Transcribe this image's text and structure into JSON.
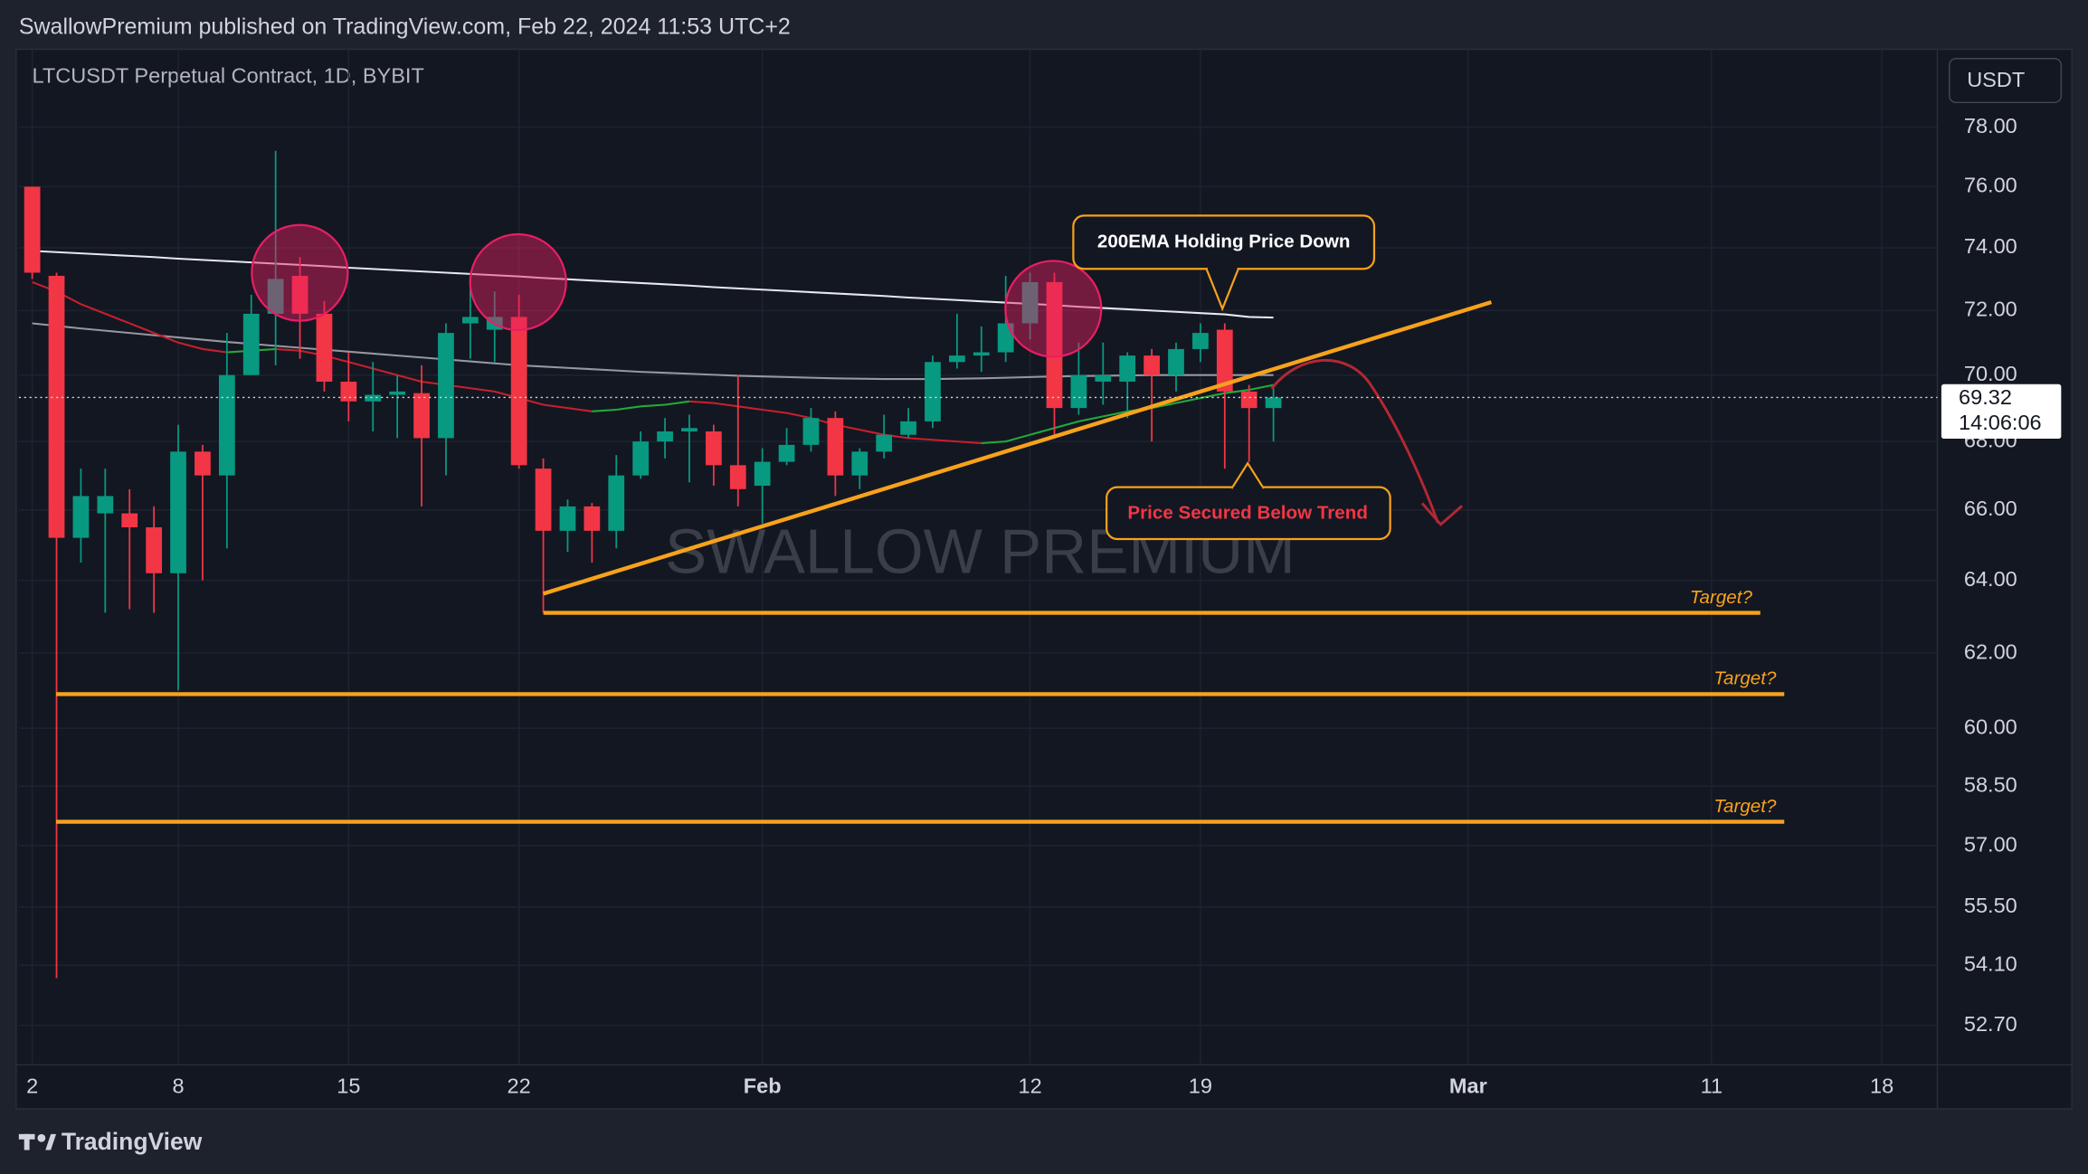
{
  "header": {
    "publisher": "SwallowPremium published on TradingView.com, Feb 22, 2024 11:53 UTC+2"
  },
  "footer": {
    "logo": "TradingView"
  },
  "chart_data": {
    "type": "candlestick",
    "title": "LTCUSDT Perpetual Contract, 1D, BYBIT",
    "currency": "USDT",
    "watermark": "SWALLOW PREMIUM",
    "log_scale": true,
    "grid": true,
    "up_color": "#089981",
    "down_color": "#f23645",
    "xlim": [
      -0.55,
      78.28
    ],
    "xticks": [
      {
        "value": 0,
        "label": "2"
      },
      {
        "value": 6,
        "label": "8"
      },
      {
        "value": 13,
        "label": "15"
      },
      {
        "value": 20,
        "label": "22"
      },
      {
        "value": 30,
        "label": "Feb"
      },
      {
        "value": 41,
        "label": "12"
      },
      {
        "value": 48,
        "label": "19"
      },
      {
        "value": 59,
        "label": "Mar"
      },
      {
        "value": 69,
        "label": "11"
      },
      {
        "value": 76,
        "label": "18"
      }
    ],
    "ylim": [
      51.8,
      80.7
    ],
    "yticks": [
      {
        "value": 78,
        "label": "78.00"
      },
      {
        "value": 76,
        "label": "76.00"
      },
      {
        "value": 74,
        "label": "74.00"
      },
      {
        "value": 72,
        "label": "72.00"
      },
      {
        "value": 70,
        "label": "70.00"
      },
      {
        "value": 68,
        "label": "68.00"
      },
      {
        "value": 66,
        "label": "66.00"
      },
      {
        "value": 64,
        "label": "64.00"
      },
      {
        "value": 62,
        "label": "62.00"
      },
      {
        "value": 60,
        "label": "60.00"
      },
      {
        "value": 58.5,
        "label": "58.50"
      },
      {
        "value": 57,
        "label": "57.00"
      },
      {
        "value": 55.5,
        "label": "55.50"
      },
      {
        "value": 54.1,
        "label": "54.10"
      },
      {
        "value": 52.7,
        "label": "52.70"
      }
    ],
    "x": [
      0,
      1,
      2,
      3,
      4,
      5,
      6,
      7,
      8,
      9,
      10,
      11,
      12,
      13,
      14,
      15,
      16,
      17,
      18,
      19,
      20,
      21,
      22,
      23,
      24,
      25,
      26,
      27,
      28,
      29,
      30,
      31,
      32,
      33,
      34,
      35,
      36,
      37,
      38,
      39,
      40,
      41,
      42,
      43,
      44,
      45,
      46,
      47,
      48,
      49,
      50,
      51
    ],
    "open": [
      76.0,
      73.1,
      65.2,
      65.9,
      65.9,
      65.5,
      64.2,
      67.7,
      67.0,
      70.0,
      71.9,
      73.1,
      71.9,
      69.8,
      69.2,
      69.4,
      69.45,
      68.1,
      71.6,
      71.4,
      71.8,
      67.2,
      65.4,
      66.1,
      65.4,
      67.0,
      68.0,
      68.3,
      68.3,
      67.3,
      66.7,
      67.4,
      67.9,
      68.7,
      67.0,
      67.7,
      68.2,
      68.6,
      70.4,
      70.6,
      70.7,
      71.6,
      72.9,
      69.0,
      69.8,
      69.8,
      70.6,
      70.0,
      70.8,
      71.4,
      69.5,
      69.0
    ],
    "high": [
      76.0,
      73.2,
      67.2,
      67.2,
      66.6,
      66.1,
      68.5,
      67.9,
      71.3,
      72.5,
      77.2,
      73.7,
      72.3,
      70.7,
      70.4,
      70.0,
      70.3,
      71.6,
      72.7,
      72.6,
      72.5,
      67.5,
      66.3,
      66.2,
      67.6,
      68.3,
      68.7,
      68.8,
      68.5,
      70.0,
      67.8,
      68.4,
      69.0,
      68.9,
      67.8,
      68.8,
      69.0,
      70.6,
      71.9,
      71.5,
      73.1,
      73.2,
      73.2,
      71.0,
      71.0,
      70.7,
      70.8,
      71.0,
      71.6,
      71.6,
      69.7,
      69.6
    ],
    "low": [
      73.0,
      53.8,
      64.5,
      63.1,
      63.2,
      63.1,
      61.0,
      64.0,
      64.9,
      70.0,
      70.3,
      70.5,
      69.5,
      68.6,
      68.3,
      68.1,
      66.1,
      67.0,
      70.5,
      70.4,
      67.2,
      63.1,
      64.8,
      64.5,
      64.9,
      66.9,
      67.5,
      66.8,
      66.7,
      66.1,
      65.6,
      67.3,
      67.7,
      66.4,
      66.6,
      67.5,
      68.1,
      68.4,
      70.2,
      70.1,
      70.4,
      71.1,
      68.2,
      68.8,
      69.1,
      68.7,
      68.0,
      69.5,
      70.4,
      67.2,
      67.4,
      68.0
    ],
    "close": [
      73.2,
      65.2,
      66.4,
      66.4,
      65.5,
      64.2,
      67.7,
      67.0,
      70.0,
      71.9,
      73.0,
      71.9,
      69.8,
      69.2,
      69.4,
      69.5,
      68.1,
      71.3,
      71.8,
      71.8,
      67.3,
      65.4,
      66.1,
      65.4,
      67.0,
      68.0,
      68.3,
      68.4,
      67.3,
      66.6,
      67.4,
      67.9,
      68.7,
      67.0,
      67.7,
      68.2,
      68.6,
      70.4,
      70.6,
      70.7,
      71.6,
      72.9,
      69.0,
      70.0,
      70.0,
      70.6,
      70.0,
      70.8,
      71.3,
      69.5,
      69.0,
      69.32
    ],
    "series": [
      {
        "color": "#e6e8ee",
        "values": [
          73.9,
          73.86,
          73.82,
          73.78,
          73.74,
          73.7,
          73.65,
          73.61,
          73.57,
          73.53,
          73.49,
          73.45,
          73.41,
          73.36,
          73.32,
          73.28,
          73.24,
          73.2,
          73.16,
          73.12,
          73.08,
          73.03,
          72.99,
          72.95,
          72.91,
          72.87,
          72.83,
          72.79,
          72.74,
          72.7,
          72.66,
          72.62,
          72.58,
          72.54,
          72.5,
          72.46,
          72.41,
          72.37,
          72.33,
          72.29,
          72.25,
          72.21,
          72.17,
          72.12,
          72.08,
          72.04,
          72.0,
          71.96,
          71.92,
          71.88,
          71.8,
          71.78
        ]
      },
      {
        "color": "#9598a1",
        "values": [
          71.6,
          71.52,
          71.44,
          71.37,
          71.3,
          71.23,
          71.16,
          71.09,
          71.02,
          70.96,
          70.9,
          70.84,
          70.78,
          70.72,
          70.66,
          70.6,
          70.54,
          70.48,
          70.42,
          70.36,
          70.3,
          70.26,
          70.22,
          70.18,
          70.14,
          70.1,
          70.07,
          70.04,
          70.01,
          69.98,
          69.96,
          69.94,
          69.92,
          69.9,
          69.89,
          69.88,
          69.88,
          69.88,
          69.89,
          69.9,
          69.92,
          69.94,
          69.96,
          69.97,
          69.98,
          69.99,
          70.0,
          70.0,
          70.0,
          70.0,
          70.0,
          70.0
        ]
      },
      {
        "up_color": "#22ab3a",
        "down_color": "#c7202c",
        "values": [
          72.9,
          72.6,
          72.2,
          71.9,
          71.6,
          71.3,
          71.0,
          70.8,
          70.7,
          70.75,
          70.8,
          70.75,
          70.6,
          70.4,
          70.2,
          70.0,
          69.8,
          69.7,
          69.6,
          69.5,
          69.3,
          69.1,
          69.0,
          68.9,
          68.95,
          69.05,
          69.1,
          69.2,
          69.15,
          69.05,
          68.95,
          68.85,
          68.7,
          68.5,
          68.35,
          68.2,
          68.1,
          68.05,
          68.0,
          67.95,
          68.0,
          68.2,
          68.4,
          68.6,
          68.75,
          68.9,
          69.0,
          69.15,
          69.3,
          69.45,
          69.55,
          69.7
        ]
      }
    ],
    "last_price": 69.32,
    "countdown": "14:06:06",
    "targets": [
      {
        "label": "Target?",
        "value": 63.1
      },
      {
        "label": "Target?",
        "value": 60.9
      },
      {
        "label": "Target?",
        "value": 57.6
      }
    ],
    "annotations": [
      {
        "text": "200EMA Holding Price Down"
      },
      {
        "text": "Price Secured Below Trend"
      }
    ]
  }
}
